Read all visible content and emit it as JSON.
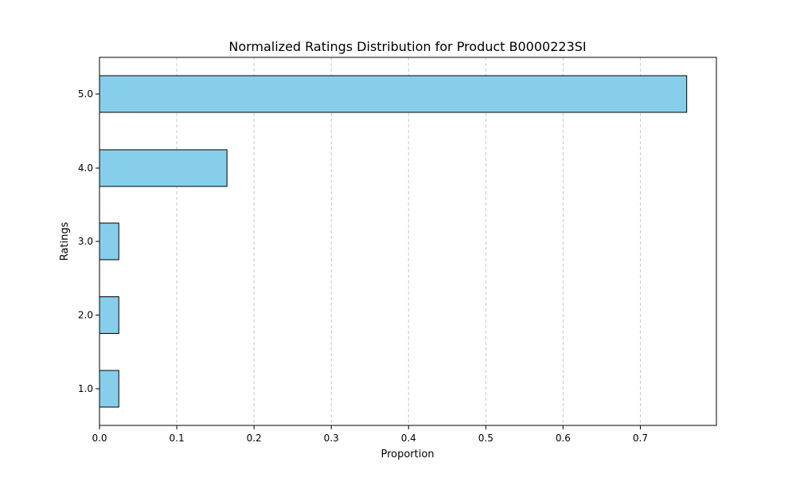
{
  "chart_data": {
    "type": "bar",
    "orientation": "horizontal",
    "title": "Normalized Ratings Distribution for Product B0000223SI",
    "xlabel": "Proportion",
    "ylabel": "Ratings",
    "categories": [
      "1.0",
      "2.0",
      "3.0",
      "4.0",
      "5.0"
    ],
    "values": [
      0.025,
      0.025,
      0.025,
      0.165,
      0.76
    ],
    "xlim": [
      0,
      0.8
    ],
    "xticks": [
      0.0,
      0.1,
      0.2,
      0.3,
      0.4,
      0.5,
      0.6,
      0.7
    ],
    "xtick_labels": [
      "0.0",
      "0.1",
      "0.2",
      "0.3",
      "0.4",
      "0.5",
      "0.6",
      "0.7"
    ],
    "grid": "vertical dashed",
    "colors": {
      "bar_fill": "#87CEEB",
      "bar_edge": "#000000",
      "grid": "#c8c8c8",
      "axis": "#000000"
    }
  }
}
